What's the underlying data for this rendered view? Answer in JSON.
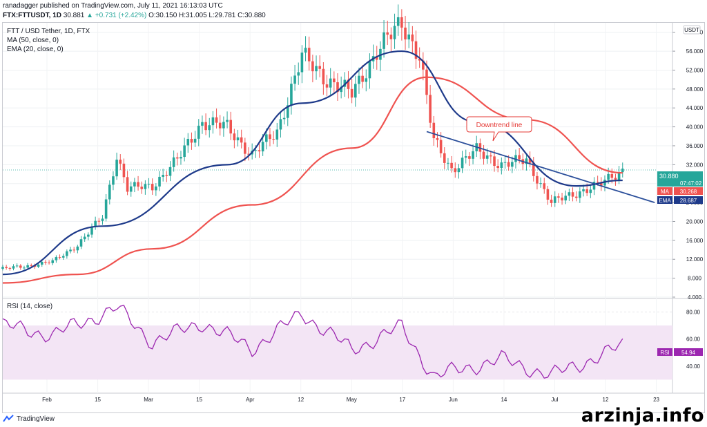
{
  "header": {
    "published_line": "ranadagger published on TradingView.com, July 11, 2021 16:13:03 UTC",
    "symbol": "FTX:FTTUSDT, 1D",
    "last": "30.881",
    "change": "▲ +0.731 (+2.42%)",
    "ohlc": "O:30.150 H:31.005 L:29.781 C:30.880"
  },
  "legend": {
    "title": "FTT / USD Tether, 1D, FTX",
    "ma": "MA (50, close, 0)",
    "ema": "EMA (20, close, 0)"
  },
  "price_axis": {
    "currency": "USDT",
    "ticks": [
      "4.000",
      "8.000",
      "12.000",
      "16.000",
      "20.000",
      "24.000",
      "28.000",
      "32.000",
      "36.000",
      "40.000",
      "44.000",
      "48.000",
      "52.000",
      "56.000",
      "60.000"
    ],
    "price_label": "30.880",
    "countdown": "07:47:02",
    "ma_tag": "MA",
    "ma_value": "30.268",
    "ema_tag": "EMA",
    "ema_value": "28.687"
  },
  "rsi": {
    "title": "RSI (14, close)",
    "ticks": [
      "40.00",
      "60.00",
      "80.00"
    ],
    "tag": "RSI",
    "value": "54.94"
  },
  "time_axis": [
    "Feb",
    "15",
    "Mar",
    "15",
    "Apr",
    "12",
    "May",
    "17",
    "Jun",
    "14",
    "Jul",
    "12",
    "23"
  ],
  "annotation": "Downtrend line",
  "colors": {
    "up": "#26a69a",
    "down": "#ef5350",
    "ma": "#ef5350",
    "ema": "#1e3a8a",
    "trend": "#2a4e9a",
    "rsi": "#9c27b0",
    "rsi_band": "#f3e5f5"
  },
  "footer": {
    "brand": "TradingView"
  },
  "watermark": "arzinja.info",
  "chart_data": {
    "type": "line",
    "x_range": [
      "2021-01-18",
      "2021-07-25"
    ],
    "price_ylim": [
      4,
      62
    ],
    "rsi_ylim": [
      20,
      90
    ],
    "price_close": [
      [
        "2021-01-18",
        10.0
      ],
      [
        "2021-01-25",
        10.6
      ],
      [
        "2021-02-01",
        11.5
      ],
      [
        "2021-02-08",
        15.0
      ],
      [
        "2021-02-15",
        21.0
      ],
      [
        "2021-02-19",
        34.0
      ],
      [
        "2021-02-22",
        27.0
      ],
      [
        "2021-03-01",
        27.5
      ],
      [
        "2021-03-08",
        33.0
      ],
      [
        "2021-03-15",
        41.0
      ],
      [
        "2021-03-22",
        40.0
      ],
      [
        "2021-03-29",
        34.0
      ],
      [
        "2021-04-05",
        39.0
      ],
      [
        "2021-04-12",
        55.0
      ],
      [
        "2021-04-19",
        50.0
      ],
      [
        "2021-04-26",
        47.0
      ],
      [
        "2021-05-03",
        56.0
      ],
      [
        "2021-05-10",
        62.0
      ],
      [
        "2021-05-15",
        55.0
      ],
      [
        "2021-05-19",
        37.0
      ],
      [
        "2021-05-24",
        31.0
      ],
      [
        "2021-05-31",
        35.0
      ],
      [
        "2021-06-07",
        32.0
      ],
      [
        "2021-06-14",
        33.0
      ],
      [
        "2021-06-21",
        24.0
      ],
      [
        "2021-06-28",
        26.0
      ],
      [
        "2021-07-05",
        28.0
      ],
      [
        "2021-07-11",
        30.88
      ]
    ],
    "ma50": [
      [
        "2021-01-18",
        7.0
      ],
      [
        "2021-02-08",
        8.8
      ],
      [
        "2021-03-01",
        14.2
      ],
      [
        "2021-03-29",
        23.5
      ],
      [
        "2021-04-26",
        35.5
      ],
      [
        "2021-05-17",
        50.5
      ],
      [
        "2021-06-14",
        41.5
      ],
      [
        "2021-07-11",
        30.27
      ]
    ],
    "ema20": [
      [
        "2021-01-18",
        8.8
      ],
      [
        "2021-02-15",
        19.0
      ],
      [
        "2021-03-22",
        32.0
      ],
      [
        "2021-04-12",
        45.0
      ],
      [
        "2021-05-10",
        56.0
      ],
      [
        "2021-05-31",
        41.0
      ],
      [
        "2021-06-28",
        27.5
      ],
      [
        "2021-07-11",
        28.69
      ]
    ],
    "rsi_series": [
      [
        "2021-01-18",
        70
      ],
      [
        "2021-02-01",
        63
      ],
      [
        "2021-02-19",
        83
      ],
      [
        "2021-03-01",
        58
      ],
      [
        "2021-03-15",
        72
      ],
      [
        "2021-03-29",
        53
      ],
      [
        "2021-04-12",
        79
      ],
      [
        "2021-04-26",
        52
      ],
      [
        "2021-05-10",
        69
      ],
      [
        "2021-05-19",
        32
      ],
      [
        "2021-05-24",
        36
      ],
      [
        "2021-06-07",
        45
      ],
      [
        "2021-06-21",
        33
      ],
      [
        "2021-07-05",
        48
      ],
      [
        "2021-07-11",
        54.94
      ]
    ],
    "downtrend_line": [
      [
        "2021-05-17",
        39.0
      ],
      [
        "2021-07-20",
        24.0
      ]
    ],
    "grid": true,
    "legend_position": "top-left"
  }
}
